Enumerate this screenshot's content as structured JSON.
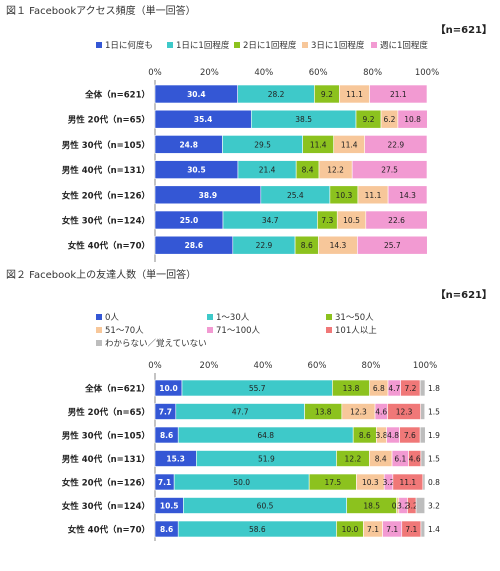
{
  "chart_data": [
    {
      "type": "bar",
      "stacked": true,
      "orientation": "horizontal",
      "title": "図１ Facebookアクセス頻度（単一回答）",
      "note": "【n=621】",
      "xlim": [
        0,
        100
      ],
      "xticks": [
        "0%",
        "20%",
        "40%",
        "60%",
        "80%",
        "100%"
      ],
      "legend_position": "top",
      "categories": [
        "全体（n=621）",
        "男性 20代（n=65）",
        "男性 30代（n=105）",
        "男性 40代（n=131）",
        "女性 20代（n=126）",
        "女性 30代（n=124）",
        "女性 40代（n=70）"
      ],
      "series": [
        {
          "name": "1日に何度も",
          "color": "#3457d5",
          "values": [
            30.4,
            35.4,
            24.8,
            30.5,
            38.9,
            25.0,
            28.6
          ]
        },
        {
          "name": "1日に1回程度",
          "color": "#3ec9c9",
          "values": [
            28.2,
            38.5,
            29.5,
            21.4,
            25.4,
            34.7,
            22.9
          ]
        },
        {
          "name": "2日に1回程度",
          "color": "#8cc21e",
          "values": [
            9.2,
            9.2,
            11.4,
            8.4,
            10.3,
            7.3,
            8.6
          ]
        },
        {
          "name": "3日に1回程度",
          "color": "#f7c79a",
          "values": [
            11.1,
            6.2,
            11.4,
            12.2,
            11.1,
            10.5,
            14.3
          ]
        },
        {
          "name": "週に1回程度",
          "color": "#f29ad2",
          "values": [
            21.1,
            10.8,
            22.9,
            27.5,
            14.3,
            22.6,
            25.7
          ]
        }
      ]
    },
    {
      "type": "bar",
      "stacked": true,
      "orientation": "horizontal",
      "title": "図２ Facebook上の友達人数（単一回答）",
      "note": "【n=621】",
      "xlim": [
        0,
        100
      ],
      "xticks": [
        "0%",
        "20%",
        "40%",
        "60%",
        "80%",
        "100%"
      ],
      "legend_position": "top",
      "categories": [
        "全体（n=621）",
        "男性 20代（n=65）",
        "男性 30代（n=105）",
        "男性 40代（n=131）",
        "女性 20代（n=126）",
        "女性 30代（n=124）",
        "女性 40代（n=70）"
      ],
      "series": [
        {
          "name": "0人",
          "color": "#3457d5",
          "values": [
            10.0,
            7.7,
            8.6,
            15.3,
            7.1,
            10.5,
            8.6
          ]
        },
        {
          "name": "1～30人",
          "color": "#3ec9c9",
          "values": [
            55.7,
            47.7,
            64.8,
            51.9,
            50.0,
            60.5,
            58.6
          ]
        },
        {
          "name": "31～50人",
          "color": "#8cc21e",
          "values": [
            13.8,
            13.8,
            8.6,
            12.2,
            17.5,
            18.5,
            10.0
          ]
        },
        {
          "name": "51～70人",
          "color": "#f7c79a",
          "values": [
            6.8,
            12.3,
            3.8,
            8.4,
            10.3,
            0.8,
            7.1
          ]
        },
        {
          "name": "71～100人",
          "color": "#f29ad2",
          "values": [
            4.7,
            4.6,
            4.8,
            6.1,
            3.2,
            3.2,
            7.1
          ]
        },
        {
          "name": "101人以上",
          "color": "#f07878",
          "values": [
            7.2,
            12.3,
            7.6,
            4.6,
            11.1,
            3.2,
            7.1
          ]
        },
        {
          "name": "わからない／覚えていない",
          "color": "#bdbdbd",
          "values": [
            1.8,
            1.5,
            1.9,
            1.5,
            0.8,
            3.2,
            1.4
          ]
        }
      ]
    }
  ]
}
